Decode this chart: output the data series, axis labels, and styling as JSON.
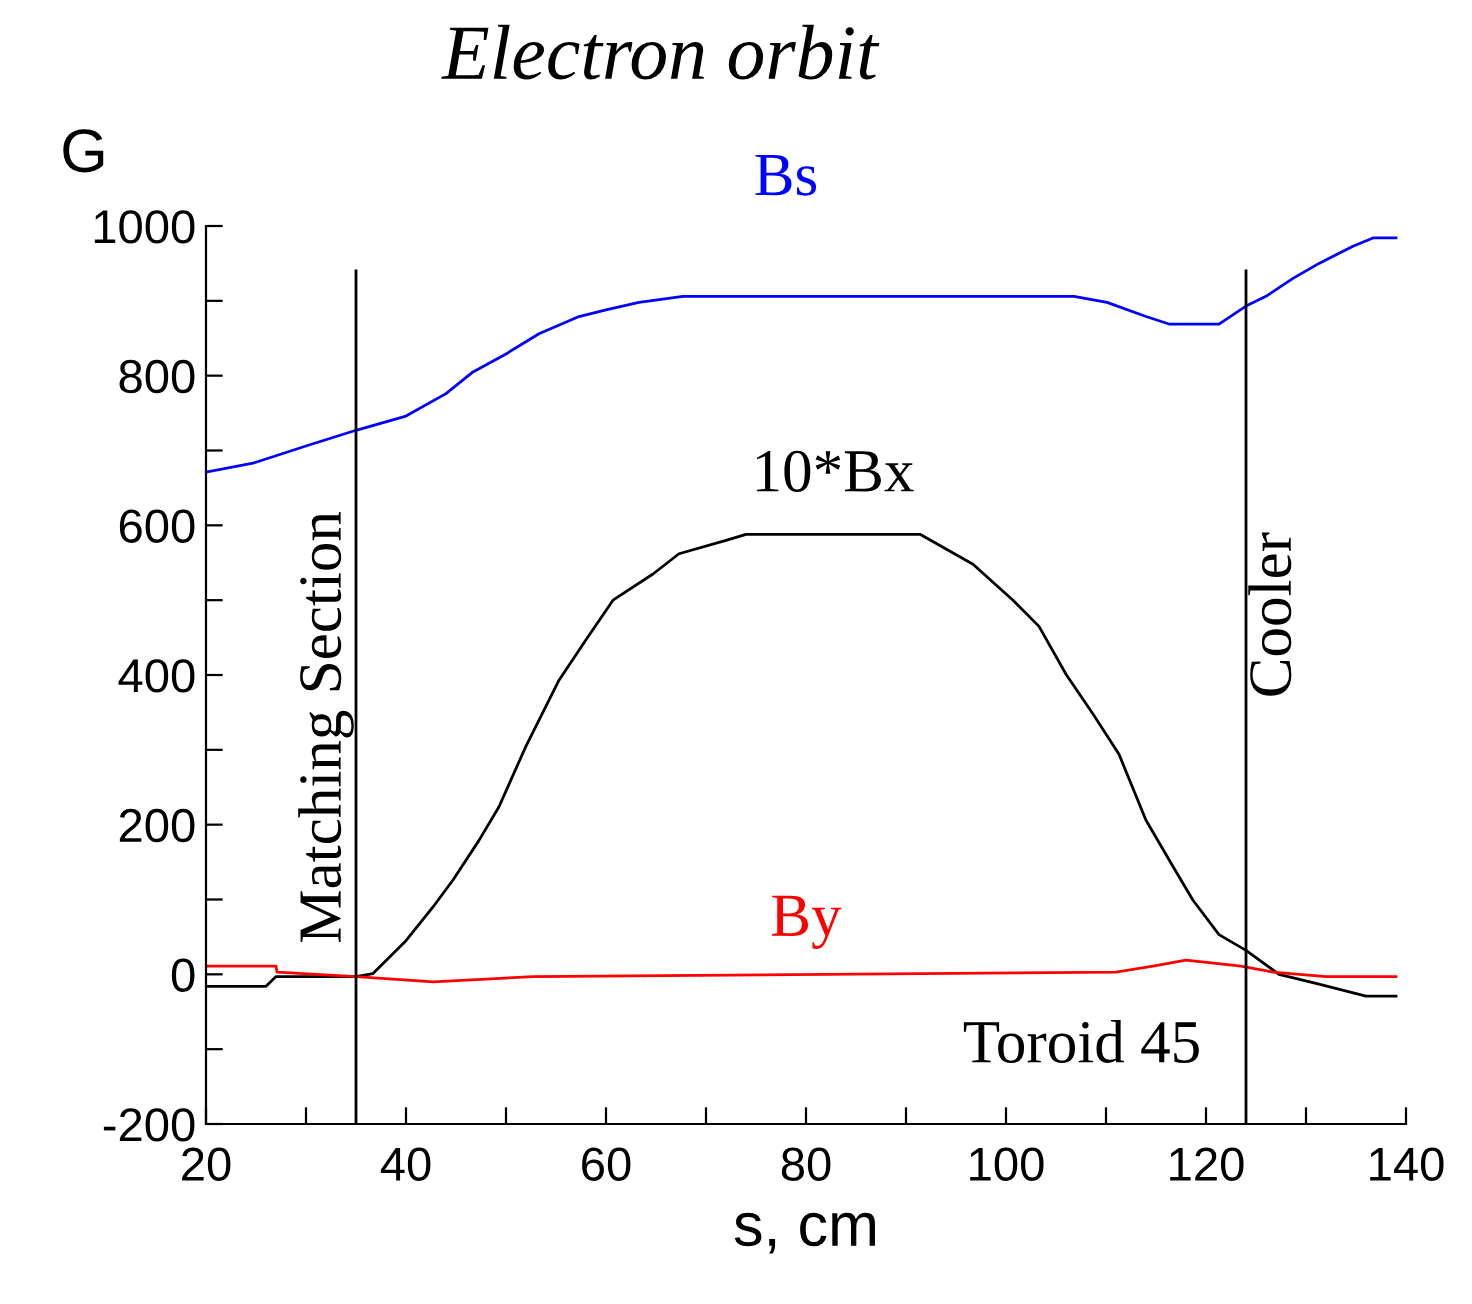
{
  "chart_data": {
    "type": "line",
    "title": "Electron orbit",
    "xlabel": "s, cm",
    "ylabel": "G",
    "xlim": [
      20,
      140
    ],
    "ylim": [
      -200,
      1000
    ],
    "xticks": [
      20,
      {
        "value": 30,
        "label": null
      },
      40,
      {
        "value": 50,
        "label": null
      },
      60,
      {
        "value": 70,
        "label": null
      },
      80,
      {
        "value": 90,
        "label": null
      },
      100,
      {
        "value": 110,
        "label": null
      },
      120,
      {
        "value": 130,
        "label": null
      },
      140
    ],
    "yticks": [
      -200,
      {
        "value": -100,
        "label": null
      },
      0,
      {
        "value": 100,
        "label": null
      },
      200,
      {
        "value": 300,
        "label": null
      },
      400,
      {
        "value": 500,
        "label": null
      },
      600,
      {
        "value": 700,
        "label": null
      },
      800,
      {
        "value": 900,
        "label": null
      },
      1000
    ],
    "grid": false,
    "legend": false,
    "marker": "none",
    "line_style": "solid",
    "series": [
      {
        "name": "Bs",
        "color": "#0000ff",
        "x": [
          20,
          24.7,
          30,
          35,
          40,
          44,
          46.7,
          50,
          53.3,
          57.3,
          60,
          63.3,
          67.7,
          106.8,
          110.1,
          114,
          116.3,
          121.3,
          124,
          126,
          128.7,
          131.3,
          134.7,
          136.7,
          139
        ],
        "values": [
          671,
          683,
          706,
          727,
          746,
          776,
          805,
          829,
          856,
          879,
          888,
          898,
          906,
          906,
          898,
          879,
          869,
          869,
          893,
          906,
          930,
          950,
          973,
          984,
          984
        ]
      },
      {
        "name": "10*Bx",
        "color": "#000000",
        "x": [
          20,
          26,
          27,
          35,
          36.7,
          40,
          42.7,
          44.7,
          47.3,
          49.3,
          52,
          55.3,
          58,
          60.7,
          64.7,
          67.3,
          72,
          74,
          91.4,
          96.7,
          100.7,
          103.3,
          106,
          108.7,
          111.3,
          114,
          116.7,
          118.7,
          121.3,
          124,
          127.3,
          131.3,
          136,
          139
        ],
        "values": [
          -16,
          -16,
          -3,
          -3,
          1,
          45,
          90,
          126,
          179,
          224,
          305,
          393,
          447,
          500,
          535,
          562,
          580,
          588,
          588,
          548,
          500,
          465,
          401,
          348,
          294,
          206,
          144,
          99,
          53,
          32,
          0,
          -13,
          -29,
          -29
        ]
      },
      {
        "name": "By",
        "color": "#ff0000",
        "x": [
          20,
          27,
          27.1,
          35,
          42.7,
          52.7,
          111,
          114.7,
          118,
          123.5,
          126.7,
          132,
          139
        ],
        "values": [
          11,
          11,
          3,
          -3,
          -10,
          -3,
          3,
          11,
          19,
          11,
          3,
          -3,
          -3
        ]
      }
    ],
    "ref_lines": [
      {
        "axis": "x",
        "value": 35,
        "label": "Matching Section",
        "color": "#000000"
      },
      {
        "axis": "x",
        "value": 124,
        "label": "Cooler",
        "color": "#000000"
      }
    ],
    "annotations": [
      "Toroid 45"
    ]
  }
}
